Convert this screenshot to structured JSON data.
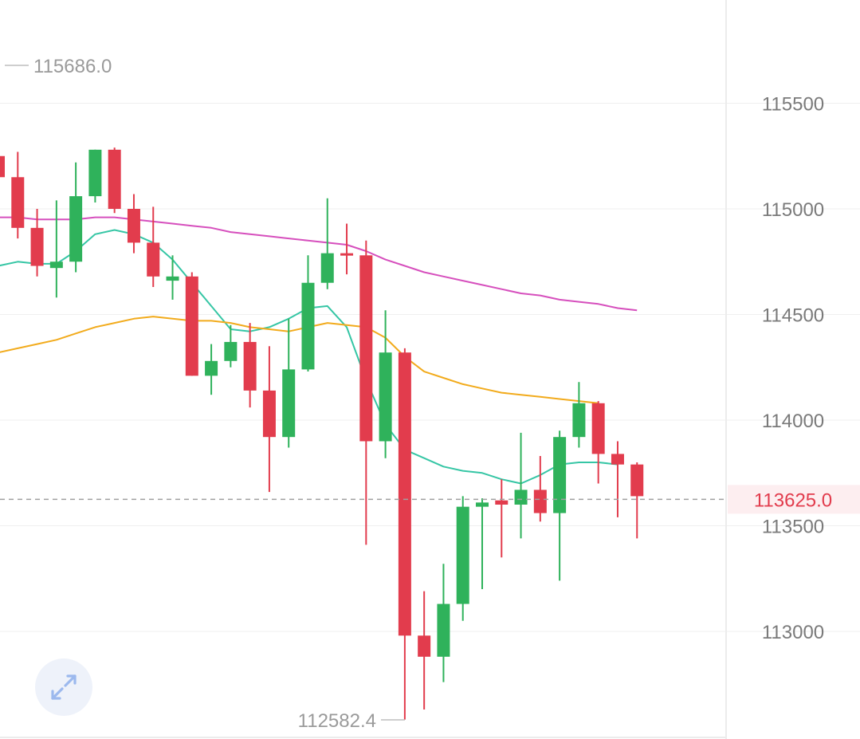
{
  "chart_data": {
    "type": "candlestick",
    "ylim": [
      112500,
      116000
    ],
    "y_ticks": [
      113000,
      113500,
      114000,
      114500,
      115000,
      115500
    ],
    "y_tick_labels": [
      "113000",
      "113500",
      "114000",
      "114500",
      "115000",
      "115500"
    ],
    "max_label": "115686.0",
    "min_label": "112582.4",
    "current_price_label": "113625.0",
    "current_price": 113625,
    "colors": {
      "up": "#2fb25b",
      "down": "#e23c4d",
      "ma_fast": "#36c6a5",
      "ma_mid": "#f2ab1c",
      "ma_slow": "#d64fbd"
    },
    "candles": [
      {
        "o": 115250,
        "h": 115686,
        "l": 115100,
        "c": 115150
      },
      {
        "o": 115150,
        "h": 115270,
        "l": 114860,
        "c": 114910
      },
      {
        "o": 114910,
        "h": 115000,
        "l": 114680,
        "c": 114730
      },
      {
        "o": 114720,
        "h": 115040,
        "l": 114580,
        "c": 114750
      },
      {
        "o": 114750,
        "h": 115220,
        "l": 114700,
        "c": 115060
      },
      {
        "o": 115060,
        "h": 115280,
        "l": 115030,
        "c": 115280
      },
      {
        "o": 115280,
        "h": 115290,
        "l": 114980,
        "c": 115000
      },
      {
        "o": 115000,
        "h": 115070,
        "l": 114790,
        "c": 114840
      },
      {
        "o": 114840,
        "h": 115010,
        "l": 114630,
        "c": 114680
      },
      {
        "o": 114660,
        "h": 114780,
        "l": 114570,
        "c": 114680
      },
      {
        "o": 114680,
        "h": 114700,
        "l": 114210,
        "c": 114210
      },
      {
        "o": 114210,
        "h": 114360,
        "l": 114120,
        "c": 114280
      },
      {
        "o": 114280,
        "h": 114450,
        "l": 114250,
        "c": 114370
      },
      {
        "o": 114370,
        "h": 114460,
        "l": 114060,
        "c": 114140
      },
      {
        "o": 114140,
        "h": 114350,
        "l": 113660,
        "c": 113920
      },
      {
        "o": 113920,
        "h": 114480,
        "l": 113870,
        "c": 114240
      },
      {
        "o": 114240,
        "h": 114780,
        "l": 114230,
        "c": 114650
      },
      {
        "o": 114650,
        "h": 115050,
        "l": 114620,
        "c": 114790
      },
      {
        "o": 114790,
        "h": 114930,
        "l": 114690,
        "c": 114780
      },
      {
        "o": 114780,
        "h": 114850,
        "l": 113410,
        "c": 113900
      },
      {
        "o": 113900,
        "h": 114520,
        "l": 113820,
        "c": 114320
      },
      {
        "o": 114320,
        "h": 114340,
        "l": 112582.4,
        "c": 112980
      },
      {
        "o": 112980,
        "h": 113190,
        "l": 112630,
        "c": 112880
      },
      {
        "o": 112880,
        "h": 113320,
        "l": 112760,
        "c": 113130
      },
      {
        "o": 113130,
        "h": 113640,
        "l": 113050,
        "c": 113590
      },
      {
        "o": 113590,
        "h": 113630,
        "l": 113200,
        "c": 113610
      },
      {
        "o": 113620,
        "h": 113720,
        "l": 113350,
        "c": 113600
      },
      {
        "o": 113600,
        "h": 113940,
        "l": 113440,
        "c": 113670
      },
      {
        "o": 113670,
        "h": 113830,
        "l": 113520,
        "c": 113560
      },
      {
        "o": 113560,
        "h": 113950,
        "l": 113240,
        "c": 113920
      },
      {
        "o": 113920,
        "h": 114180,
        "l": 113870,
        "c": 114080
      },
      {
        "o": 114080,
        "h": 114090,
        "l": 113700,
        "c": 113840
      },
      {
        "o": 113840,
        "h": 113900,
        "l": 113540,
        "c": 113790
      },
      {
        "o": 113790,
        "h": 113800,
        "l": 113440,
        "c": 113640
      }
    ],
    "ma_fast": [
      114730,
      114750,
      114740,
      114740,
      114800,
      114880,
      114900,
      114880,
      114840,
      114760,
      114650,
      114540,
      114430,
      114420,
      114440,
      114480,
      114530,
      114540,
      114440,
      114190,
      113980,
      113860,
      113820,
      113780,
      113760,
      113750,
      113720,
      113700,
      113740,
      113790,
      113800,
      113800,
      113790
    ],
    "ma_mid": [
      114320,
      114340,
      114360,
      114380,
      114410,
      114440,
      114460,
      114480,
      114490,
      114480,
      114470,
      114470,
      114460,
      114440,
      114430,
      114420,
      114440,
      114460,
      114450,
      114440,
      114390,
      114300,
      114230,
      114200,
      114170,
      114150,
      114130,
      114120,
      114110,
      114100,
      114090,
      114080
    ],
    "ma_slow": [
      114960,
      114960,
      114950,
      114950,
      114950,
      114960,
      114960,
      114950,
      114940,
      114930,
      114920,
      114910,
      114890,
      114880,
      114870,
      114860,
      114850,
      114840,
      114830,
      114800,
      114760,
      114730,
      114700,
      114680,
      114660,
      114640,
      114620,
      114600,
      114590,
      114570,
      114560,
      114550,
      114530,
      114520
    ]
  },
  "expand_button": {
    "icon": "expand-arrows-icon"
  }
}
